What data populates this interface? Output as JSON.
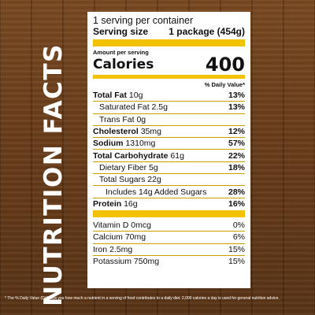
{
  "side_title": "NUTRITION FACTS",
  "panel": {
    "servings": "1 serving per container",
    "serving_size_label": "Serving size",
    "serving_size_value": "1 package (454g)",
    "amount_per_serving": "Amount per serving",
    "calories_label": "Calories",
    "calories_value": "400",
    "dv_header": "% Daily Value*",
    "nutrients": [
      {
        "label": "Total Fat",
        "amount": "10g",
        "dv": "13%"
      },
      {
        "label": "Saturated Fat 2.5g",
        "dv": "13%"
      },
      {
        "label": "Trans Fat 0g"
      },
      {
        "label": "Cholesterol",
        "amount": "35mg",
        "dv": "12%"
      },
      {
        "label": "Sodium",
        "amount": "1310mg",
        "dv": "57%"
      },
      {
        "label": "Total Carbohydrate",
        "amount": "61g",
        "dv": "22%"
      },
      {
        "label": "Dietary Fiber 5g",
        "dv": "18%"
      },
      {
        "label": "Total Sugars 22g"
      },
      {
        "label": "Includes 14g Added Sugars",
        "dv": "28%"
      },
      {
        "label": "Protein",
        "amount": "16g",
        "dv": "16%"
      }
    ],
    "vitamins": [
      {
        "label": "Vitamin D 0mcg",
        "dv": "0%"
      },
      {
        "label": "Calcium 70mg",
        "dv": "6%"
      },
      {
        "label": "Iron 2.5mg",
        "dv": "15%"
      },
      {
        "label": "Potassium 750mg",
        "dv": "15%"
      }
    ]
  },
  "footnote": "* The % Daily Value (DV) tells you how much a nutrient in a serving of food contributes to a daily diet. 2,000 calories a day is used for general nutrition advice.",
  "colors": {
    "accent": "#f2c200",
    "wood": "#6b3f1c"
  }
}
